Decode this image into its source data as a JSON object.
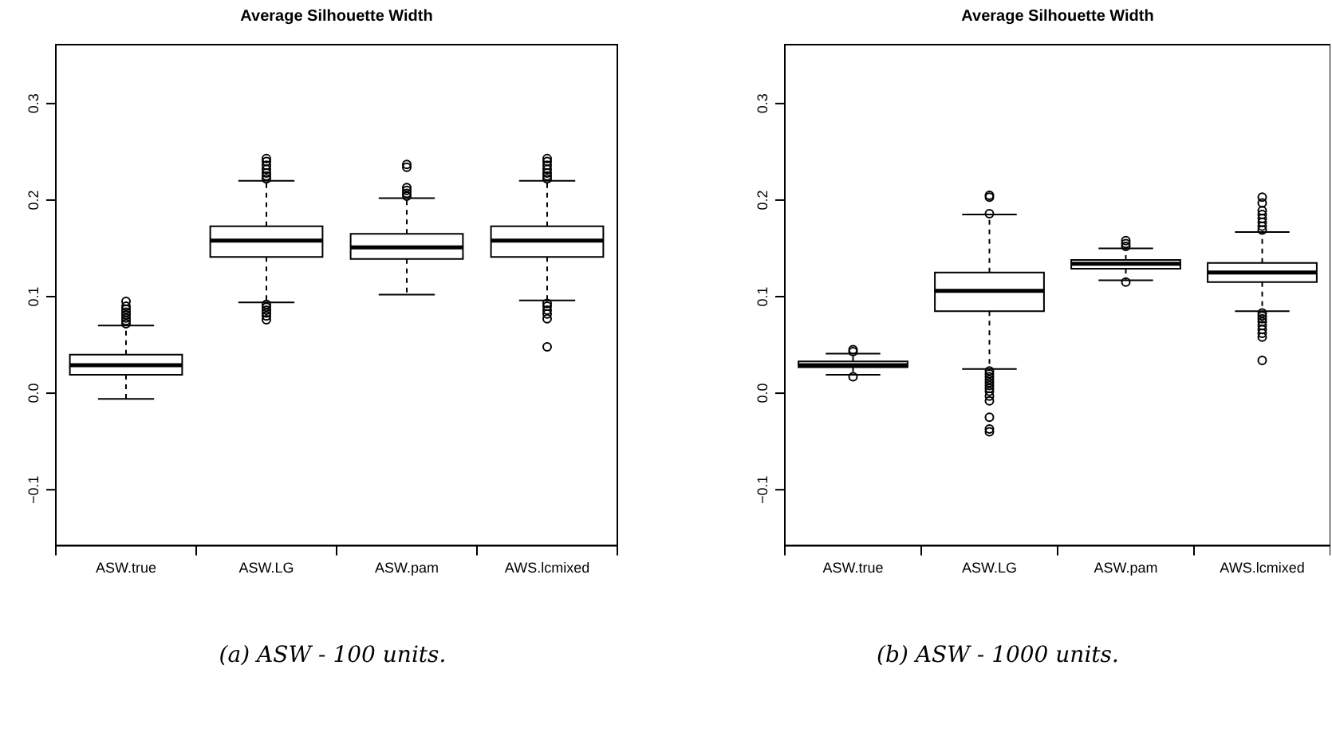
{
  "chart_data": [
    {
      "type": "box",
      "title": "Average Silhouette Width",
      "categories": [
        "ASW.true",
        "ASW.LG",
        "ASW.pam",
        "AWS.lcmixed"
      ],
      "ylim": [
        -0.158,
        0.361
      ],
      "yticks": [
        -0.1,
        {
          "value": 0,
          "label": "0.0"
        },
        0.1,
        0.2,
        0.3
      ],
      "grid": false,
      "annotations": [
        "(a) ASW - 100 units."
      ],
      "boxes": [
        {
          "low": -0.006,
          "q1": 0.019,
          "median": 0.029,
          "q3": 0.04,
          "high": 0.07,
          "outliers": [
            0.072,
            0.075,
            0.078,
            0.081,
            0.084,
            0.087,
            0.09,
            0.095
          ]
        },
        {
          "low": 0.094,
          "q1": 0.141,
          "median": 0.158,
          "q3": 0.173,
          "high": 0.22,
          "outliers": [
            0.222,
            0.225,
            0.228,
            0.232,
            0.236,
            0.24,
            0.243,
            0.092,
            0.089,
            0.086,
            0.083,
            0.08,
            0.076
          ]
        },
        {
          "low": 0.102,
          "q1": 0.139,
          "median": 0.151,
          "q3": 0.165,
          "high": 0.202,
          "outliers": [
            0.204,
            0.207,
            0.21,
            0.213,
            0.234,
            0.237
          ]
        },
        {
          "low": 0.096,
          "q1": 0.141,
          "median": 0.158,
          "q3": 0.173,
          "high": 0.22,
          "outliers": [
            0.222,
            0.225,
            0.228,
            0.232,
            0.236,
            0.24,
            0.243,
            0.093,
            0.09,
            0.086,
            0.082,
            0.077,
            0.048
          ]
        }
      ]
    },
    {
      "type": "box",
      "title": "Average Silhouette Width",
      "categories": [
        "ASW.true",
        "ASW.LG",
        "ASW.pam",
        "AWS.lcmixed"
      ],
      "ylim": [
        -0.158,
        0.361
      ],
      "yticks": [
        -0.1,
        {
          "value": 0,
          "label": "0.0"
        },
        0.1,
        0.2,
        0.3
      ],
      "grid": false,
      "annotations": [
        "(b) ASW - 1000 units."
      ],
      "boxes": [
        {
          "low": 0.019,
          "q1": 0.027,
          "median": 0.029,
          "q3": 0.033,
          "high": 0.041,
          "outliers": [
            0.043,
            0.045,
            0.017
          ]
        },
        {
          "low": 0.025,
          "q1": 0.085,
          "median": 0.106,
          "q3": 0.125,
          "high": 0.185,
          "outliers": [
            0.186,
            0.203,
            0.205,
            0.023,
            0.02,
            0.017,
            0.014,
            0.011,
            0.008,
            0.005,
            0.002,
            -0.003,
            -0.008,
            -0.025,
            -0.037,
            -0.04
          ]
        },
        {
          "low": 0.117,
          "q1": 0.129,
          "median": 0.134,
          "q3": 0.138,
          "high": 0.15,
          "outliers": [
            0.152,
            0.155,
            0.158,
            0.115
          ]
        },
        {
          "low": 0.085,
          "q1": 0.115,
          "median": 0.125,
          "q3": 0.135,
          "high": 0.167,
          "outliers": [
            0.169,
            0.173,
            0.177,
            0.181,
            0.185,
            0.189,
            0.197,
            0.203,
            0.083,
            0.08,
            0.077,
            0.074,
            0.07,
            0.066,
            0.062,
            0.058,
            0.034
          ]
        }
      ]
    }
  ]
}
